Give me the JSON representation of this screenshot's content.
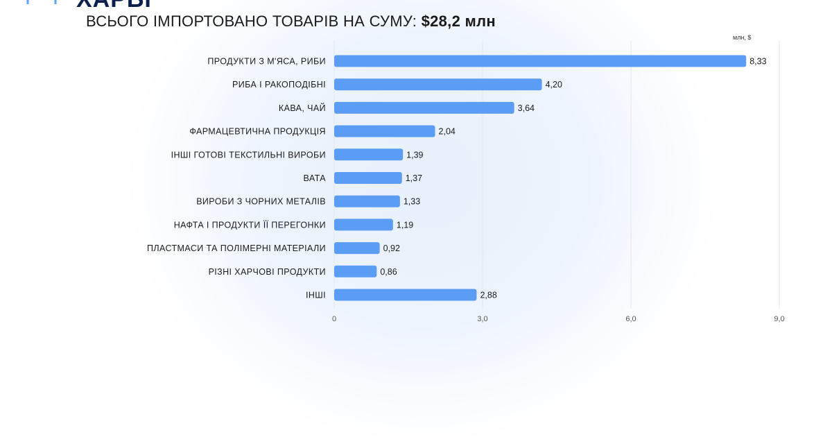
{
  "header": {
    "logo_text": "ХАРБІ",
    "headline_prefix": "ВСЬОГО ІМПОРТОВАНО ТОВАРІВ НА СУМУ:",
    "headline_total": "$28,2 млн"
  },
  "colors": {
    "bar": "#5b9cf5",
    "title": "#1a1a1a",
    "logo": "#0d1f4d"
  },
  "chart_data": {
    "type": "bar",
    "orientation": "horizontal",
    "unit": "млн, $",
    "categories": [
      "ПРОДУКТИ З М'ЯСА, РИБИ",
      "РИБА І РАКОПОДІБНІ",
      "КАВА, ЧАЙ",
      "ФАРМАЦЕВТИЧНА ПРОДУКЦІЯ",
      "ІНШІ ГОТОВІ ТЕКСТИЛЬНІ ВИРОБИ",
      "ВАТА",
      "ВИРОБИ З ЧОРНИХ МЕТАЛІВ",
      "НАФТА І ПРОДУКТИ ЇЇ ПЕРЕГОНКИ",
      "ПЛАСТМАСИ ТА ПОЛІМЕРНІ МАТЕРІАЛИ",
      "РІЗНІ ХАРЧОВІ ПРОДУКТИ",
      "ІНШІ"
    ],
    "values": [
      8.33,
      4.2,
      3.64,
      2.04,
      1.39,
      1.37,
      1.33,
      1.19,
      0.92,
      0.86,
      2.88
    ],
    "value_labels": [
      "8,33",
      "4,20",
      "3,64",
      "2,04",
      "1,39",
      "1,37",
      "1,33",
      "1,19",
      "0,92",
      "0,86",
      "2,88"
    ],
    "xlim": [
      0,
      9
    ],
    "x_ticks": [
      0,
      3,
      6,
      9
    ],
    "x_tick_labels": [
      "0",
      "3,0",
      "6,0",
      "9,0"
    ],
    "grid": true
  }
}
